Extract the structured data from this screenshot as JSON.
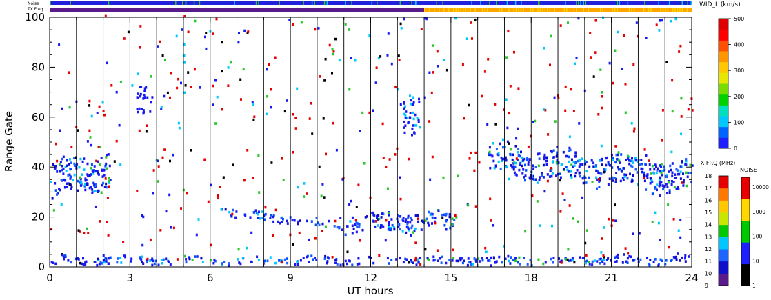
{
  "chart_data": {
    "type": "heatmap",
    "xlabel": "UT hours",
    "ylabel": "Range Gate",
    "xlim": [
      0,
      24
    ],
    "ylim": [
      0,
      100
    ],
    "x_ticks": [
      "0",
      "3",
      "6",
      "9",
      "12",
      "15",
      "18",
      "21",
      "24"
    ],
    "y_ticks": [
      "0",
      "20",
      "40",
      "60",
      "80",
      "100"
    ],
    "vertical_grid_hours": [
      1,
      2,
      3,
      4,
      5,
      6,
      7,
      8,
      9,
      10,
      11,
      12,
      13,
      14,
      15,
      16,
      17,
      18,
      19,
      20,
      21,
      22,
      23
    ],
    "strip_labels": {
      "noise": "Noise",
      "txfreq": "TX Freq"
    },
    "strip_tx_change_hour": 14,
    "width_scale": {
      "title": "WID_L (km/s)",
      "ticks": [
        "0",
        "100",
        "200",
        "300",
        "400",
        "500"
      ],
      "ylim": [
        0,
        500
      ]
    },
    "tx_scale": {
      "title": "TX FRQ (MHz)",
      "ticks": [
        "9",
        "10",
        "11",
        "12",
        "13",
        "14",
        "15",
        "16",
        "17",
        "18"
      ]
    },
    "noise_scale": {
      "title": "NOISE",
      "ticks": [
        "1",
        "10",
        "100",
        "1000",
        "10000"
      ]
    },
    "echo_bands": [
      {
        "name": "low-range echoes",
        "x": [
          0,
          24
        ],
        "y_center": [
          2,
          2
        ],
        "width": 3
      },
      {
        "name": "early-morning echoes",
        "x": [
          0,
          2.3
        ],
        "y_center": [
          33,
          40
        ],
        "width": 14
      },
      {
        "name": "drifting echo band",
        "x": [
          6.3,
          10.8
        ],
        "y_center": [
          22,
          16
        ],
        "width": 3
      },
      {
        "name": "midday echo band",
        "x": [
          10.8,
          15.2
        ],
        "y_center": [
          17,
          18
        ],
        "width": 7
      },
      {
        "name": "afternoon echoes",
        "x": [
          16.3,
          24
        ],
        "y_center": [
          43,
          35
        ],
        "width": 12
      }
    ]
  },
  "colors": {
    "plot_blue": "#1818f0",
    "strip_blue": "#2020dd",
    "strip_purple": "#5a1a8c",
    "strip_orange": "#ffa500",
    "strip_yellow": "#ffd700"
  }
}
